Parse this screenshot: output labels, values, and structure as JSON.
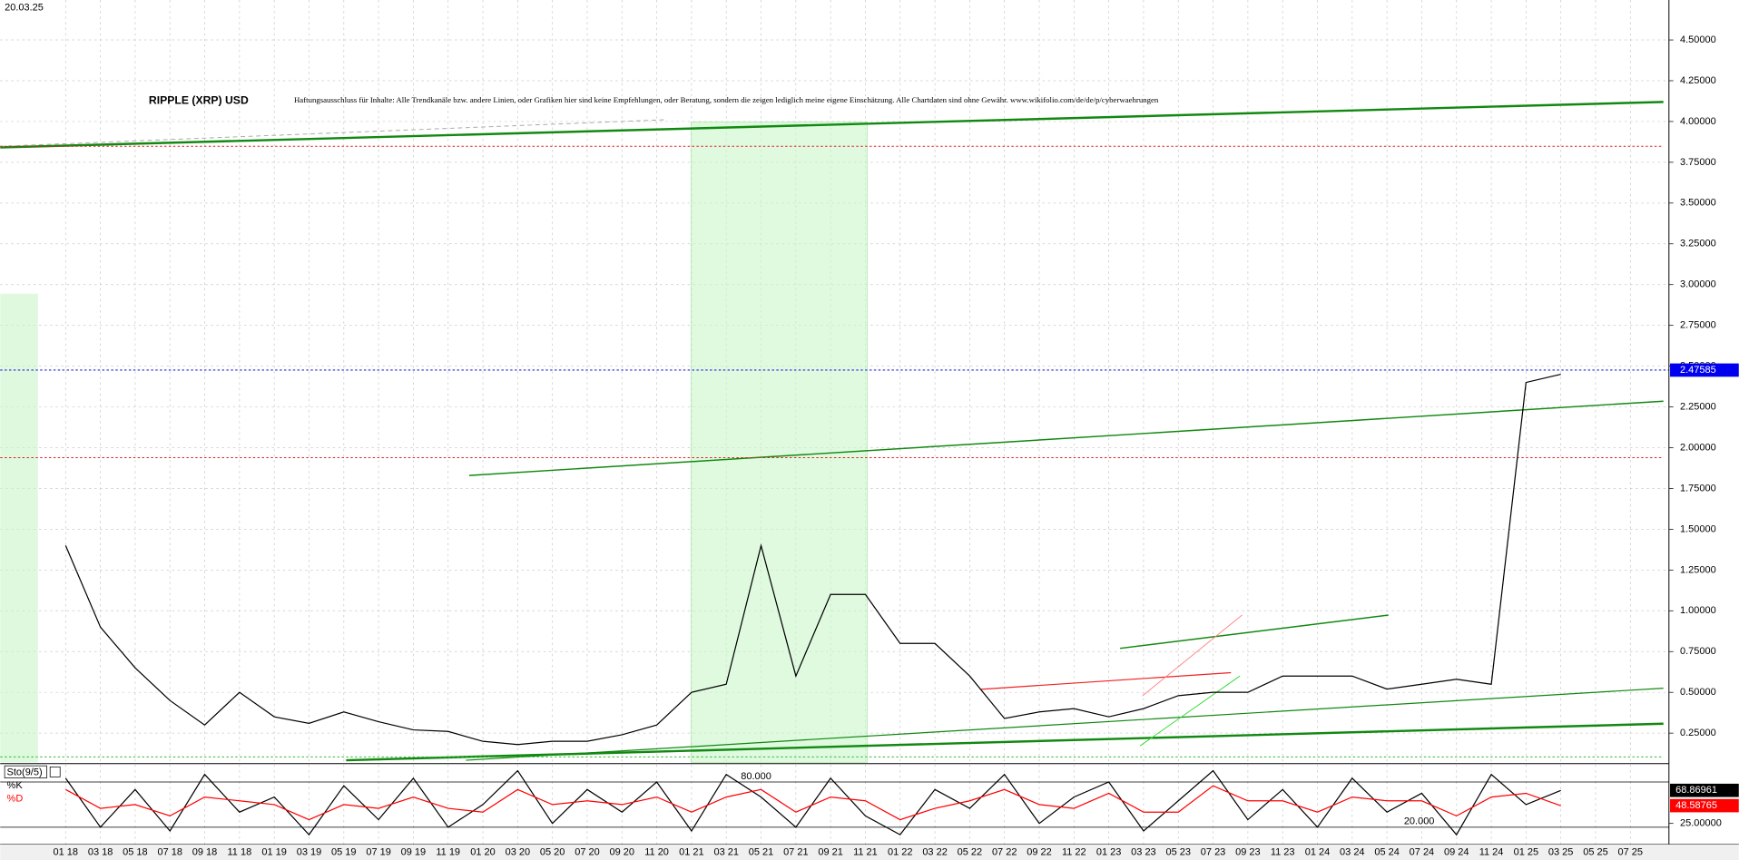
{
  "chart_data": [
    {
      "type": "line",
      "title": "RIPPLE (XRP) USD",
      "date": "20.03.25",
      "disclaimer": "Haftungsausschluss für Inhalte: Alle Trendkanäle bzw. andere Linien, oder Grafiken hier sind keine Empfehlungen, oder Beratung, sondern die zeigen lediglich meine eigene Einschätzung. Alle Chartdaten sind ohne Gewähr.  www.wikifolio.com/de/de/p/cyberwaehrungen",
      "categories": [
        "01 18",
        "03 18",
        "05 18",
        "07 18",
        "09 18",
        "11 18",
        "01 19",
        "03 19",
        "05 19",
        "07 19",
        "09 19",
        "11 19",
        "01 20",
        "03 20",
        "05 20",
        "07 20",
        "09 20",
        "11 20",
        "01 21",
        "03 21",
        "05 21",
        "07 21",
        "09 21",
        "11 21",
        "01 22",
        "03 22",
        "05 22",
        "07 22",
        "09 22",
        "11 22",
        "01 23",
        "03 23",
        "05 23",
        "07 23",
        "09 23",
        "11 23",
        "01 24",
        "03 24",
        "05 24",
        "07 24",
        "09 24",
        "11 24",
        "01 25",
        "03 25",
        "05 25",
        "07 25"
      ],
      "values": [
        1.4,
        0.9,
        0.65,
        0.45,
        0.3,
        0.5,
        0.35,
        0.31,
        0.38,
        0.32,
        0.27,
        0.26,
        0.2,
        0.18,
        0.2,
        0.2,
        0.24,
        0.3,
        0.5,
        0.55,
        1.4,
        0.6,
        1.1,
        1.1,
        0.8,
        0.8,
        0.6,
        0.34,
        0.38,
        0.4,
        0.35,
        0.4,
        0.48,
        0.5,
        0.5,
        0.6,
        0.6,
        0.6,
        0.52,
        0.55,
        0.58,
        0.55,
        2.4,
        2.45,
        null,
        null
      ],
      "color": "#000000",
      "ylim": [
        0.07,
        4.745
      ],
      "yticks": [
        {
          "value": 0.25,
          "label": "0.25000"
        },
        {
          "value": 0.5,
          "label": "0.50000"
        },
        {
          "value": 0.75,
          "label": "0.75000"
        },
        {
          "value": 1,
          "label": "1.00000"
        },
        {
          "value": 1.25,
          "label": "1.25000"
        },
        {
          "value": 1.5,
          "label": "1.50000"
        },
        {
          "value": 1.75,
          "label": "1.75000"
        },
        {
          "value": 2,
          "label": "2.00000"
        },
        {
          "value": 2.25,
          "label": "2.25000"
        },
        {
          "value": 2.5,
          "label": "2.50000"
        },
        {
          "value": 2.75,
          "label": "2.75000"
        },
        {
          "value": 3,
          "label": "3.00000"
        },
        {
          "value": 3.25,
          "label": "3.25000"
        },
        {
          "value": 3.5,
          "label": "3.50000"
        },
        {
          "value": 3.75,
          "label": "3.75000"
        },
        {
          "value": 4,
          "label": "4.00000"
        },
        {
          "value": 4.25,
          "label": "4.25000"
        },
        {
          "value": 4.5,
          "label": "4.50000"
        }
      ],
      "grid": true,
      "current_price": {
        "value": 2.47585,
        "label": "2.47585"
      }
    },
    {
      "type": "line",
      "title": "Sto(9/5)",
      "series": [
        {
          "name": "%K",
          "color": "#000000",
          "values": [
            85,
            20,
            70,
            15,
            90,
            40,
            60,
            10,
            75,
            30,
            85,
            20,
            50,
            95,
            25,
            70,
            40,
            80,
            15,
            90,
            60,
            20,
            85,
            35,
            10,
            70,
            45,
            90,
            25,
            60,
            80,
            15,
            55,
            95,
            30,
            70,
            20,
            85,
            40,
            65,
            10,
            90,
            50,
            68.86961,
            null,
            null
          ],
          "last": {
            "value": 68.86961,
            "label": "68.86961"
          }
        },
        {
          "name": "%D",
          "color": "#ff0000",
          "values": [
            70,
            45,
            50,
            35,
            60,
            55,
            50,
            30,
            50,
            45,
            60,
            45,
            40,
            70,
            50,
            55,
            50,
            60,
            40,
            60,
            70,
            40,
            60,
            55,
            30,
            45,
            55,
            70,
            50,
            45,
            65,
            40,
            40,
            75,
            55,
            55,
            40,
            60,
            55,
            55,
            35,
            60,
            65,
            48.58765,
            null,
            null
          ],
          "last": {
            "value": 48.58765,
            "label": "48.58765"
          }
        }
      ],
      "ylim": [
        0,
        100
      ],
      "yticks": [
        {
          "value": 25,
          "label": "25.00000"
        }
      ],
      "levels": [
        {
          "value": 80,
          "label": "80.000"
        },
        {
          "value": 20,
          "label": "20.000"
        }
      ]
    }
  ]
}
